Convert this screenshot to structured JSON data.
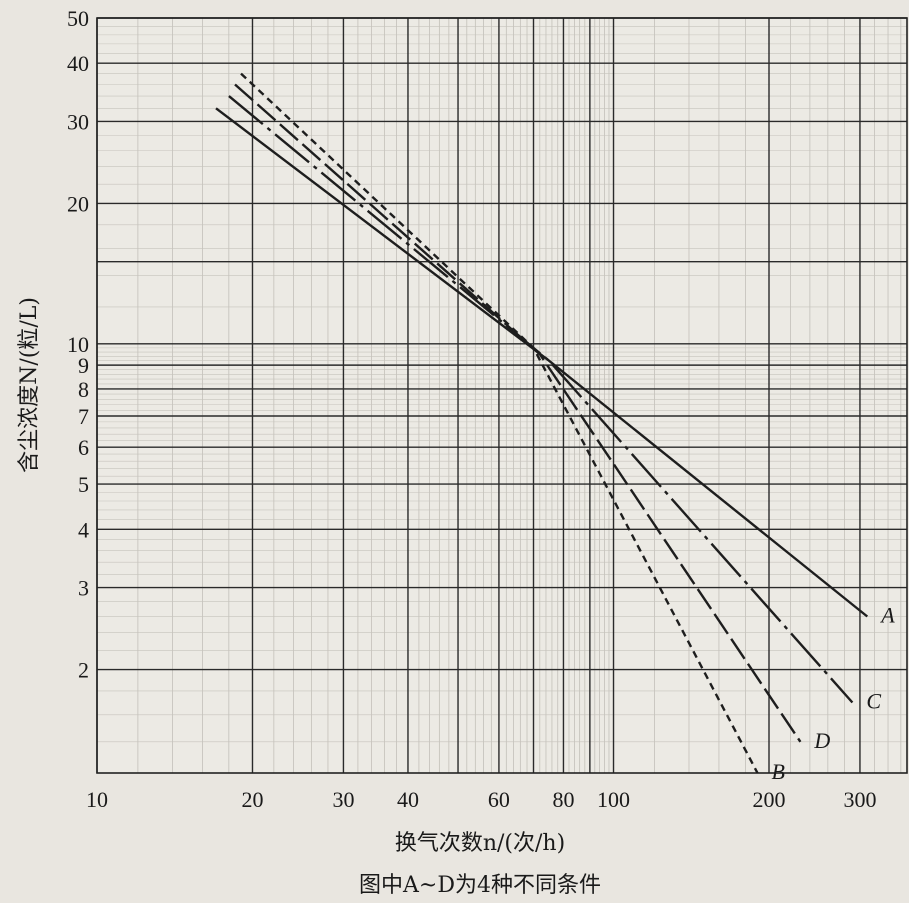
{
  "chart_data": {
    "type": "line",
    "xscale": "log",
    "yscale": "log",
    "xlim": [
      10,
      370
    ],
    "ylim": [
      1.2,
      50
    ],
    "xlabel": "换气次数n/(次/h)",
    "ylabel": "含尘浓度N/(粒/L)",
    "caption": "图中A~D为4种不同条件",
    "x_ticks": [
      10,
      20,
      30,
      40,
      60,
      80,
      100,
      200,
      300
    ],
    "x_tick_labels": [
      "10",
      "20",
      "30",
      "40",
      "60",
      "80",
      "100",
      "200",
      "300"
    ],
    "y_ticks": [
      2,
      3,
      4,
      5,
      6,
      7,
      8,
      9,
      10,
      20,
      30,
      40,
      50
    ],
    "y_tick_labels": [
      "2",
      "3",
      "4",
      "5",
      "6",
      "7",
      "8",
      "9",
      "10",
      "20",
      "30",
      "40",
      "50"
    ],
    "grid": true,
    "series": [
      {
        "name": "A",
        "style": "solid",
        "x": [
          17,
          75,
          310
        ],
        "y": [
          32,
          9.2,
          2.6
        ]
      },
      {
        "name": "C",
        "style": "dash-dot",
        "x": [
          18,
          75,
          290
        ],
        "y": [
          34,
          9.2,
          1.7
        ]
      },
      {
        "name": "D",
        "style": "long-dash",
        "x": [
          18.5,
          72,
          230
        ],
        "y": [
          36,
          9.5,
          1.4
        ]
      },
      {
        "name": "B",
        "style": "dashed",
        "x": [
          19,
          70,
          190
        ],
        "y": [
          38,
          9.8,
          1.2
        ]
      }
    ]
  }
}
